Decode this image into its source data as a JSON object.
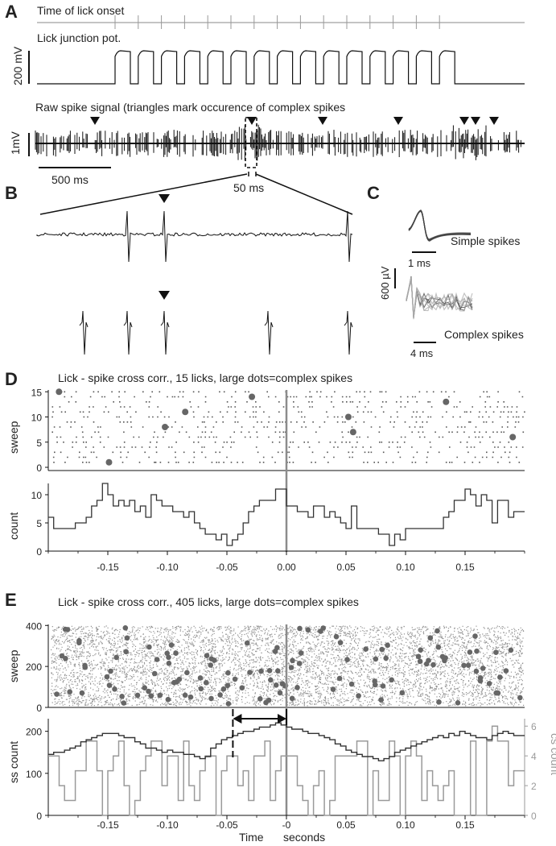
{
  "colors": {
    "ink": "#111111",
    "dot": "#555555",
    "big_dot": "#666666",
    "zero_line": "#8c8c8c",
    "cs_trace": "#9a9a9a",
    "cs_axis": "#9a9a9a",
    "simple_overlay": "#444444"
  },
  "panels": {
    "A": {
      "letter": "A",
      "lick_onset_label": "Time of lick onset",
      "junction_label": "Lick junction pot.",
      "scale_v_label": "200 mV",
      "raw_label": "Raw spike signal (triangles mark occurence of complex spikes",
      "raw_scale_label": "1mV",
      "time_scale_label": "500 ms",
      "zoom_scale_label": "50 ms"
    },
    "B": {
      "letter": "B"
    },
    "C": {
      "letter": "C",
      "simple_label": "Simple spikes",
      "simple_scale_label": "1 ms",
      "amp_scale_label": "600 µV",
      "complex_label": "Complex spikes",
      "complex_scale_label": "4 ms"
    },
    "D": {
      "letter": "D",
      "title": "Lick - spike cross corr., 15 licks, large dots=complex spikes",
      "raster_ylabel": "sweep",
      "hist_ylabel": "count"
    },
    "E": {
      "letter": "E",
      "title": "Lick - spike cross corr., 405 licks, large dots=complex spikes",
      "raster_ylabel": "sweep",
      "hist_ylabel": "ss count",
      "cs_ylabel": "cs count",
      "xlabel": "Time",
      "xunit": "seconds"
    }
  },
  "chart_data": [
    {
      "type": "scatter",
      "panel": "D-raster",
      "title": "Lick - spike cross corr., 15 licks, large dots=complex spikes",
      "ylabel": "sweep",
      "xlim": [
        -0.2,
        0.2
      ],
      "ylim": [
        0,
        16
      ],
      "y_ticks": [
        "15",
        "10",
        "5",
        "0"
      ],
      "complex_spikes": [
        {
          "x": -0.191,
          "y": 15
        },
        {
          "x": -0.029,
          "y": 14
        },
        {
          "x": 0.134,
          "y": 13
        },
        {
          "x": -0.085,
          "y": 11
        },
        {
          "x": 0.052,
          "y": 10
        },
        {
          "x": -0.102,
          "y": 8
        },
        {
          "x": 0.056,
          "y": 7
        },
        {
          "x": 0.19,
          "y": 6
        },
        {
          "x": -0.149,
          "y": 1
        }
      ],
      "zero_line_x": 0
    },
    {
      "type": "bar",
      "panel": "D-histogram",
      "ylabel": "count",
      "xlim": [
        -0.2,
        0.2
      ],
      "ylim": [
        0,
        12
      ],
      "y_ticks": [
        "10",
        "5",
        "0"
      ],
      "x_ticks": [
        "-0.15",
        "-0.10",
        "-0.05",
        "0.00",
        "0.05",
        "0.10",
        "0.15"
      ],
      "bin_width": 0.005,
      "values": [
        6,
        4,
        4,
        4,
        4,
        5,
        5,
        6,
        8,
        9,
        12,
        10,
        8,
        9,
        8,
        9,
        7,
        8,
        6,
        10,
        9,
        8,
        8,
        7,
        7,
        6,
        7,
        5,
        4,
        3,
        3,
        2,
        3,
        1,
        2,
        3,
        5,
        7,
        8,
        9,
        9,
        9,
        11,
        11,
        8,
        8,
        7,
        7,
        6,
        8,
        8,
        6,
        7,
        6,
        5,
        4,
        8,
        4,
        4,
        4,
        4,
        3,
        3,
        1,
        3,
        2,
        4,
        4,
        4,
        4,
        4,
        4,
        4,
        6,
        7,
        9,
        9,
        11,
        10,
        8,
        10,
        9,
        5,
        9,
        9,
        6,
        7,
        7
      ]
    },
    {
      "type": "scatter",
      "panel": "E-raster",
      "title": "Lick - spike cross corr., 405 licks, large dots=complex spikes",
      "ylabel": "sweep",
      "xlim": [
        -0.2,
        0.2
      ],
      "ylim": [
        0,
        405
      ],
      "y_ticks": [
        "400",
        "200",
        "0"
      ],
      "zero_line_x": 0
    },
    {
      "type": "line",
      "panel": "E-histogram",
      "xlabel": "Time",
      "xunit": "seconds",
      "xlim": [
        -0.2,
        0.2
      ],
      "x_ticks": [
        "-0.15",
        "-0.10",
        "-0.05",
        "-0",
        "0.05",
        "0.10",
        "0.15"
      ],
      "series": [
        {
          "name": "ss count",
          "axis": "left",
          "ylim": [
            0,
            230
          ],
          "y_ticks": [
            "200",
            "100",
            "0"
          ],
          "values": [
            145,
            150,
            150,
            155,
            160,
            165,
            175,
            180,
            185,
            190,
            195,
            195,
            195,
            190,
            185,
            185,
            175,
            170,
            160,
            160,
            155,
            150,
            155,
            150,
            150,
            145,
            145,
            140,
            135,
            140,
            160,
            170,
            180,
            185,
            190,
            195,
            200,
            200,
            205,
            210,
            210,
            215,
            220,
            215,
            210,
            205,
            205,
            200,
            195,
            195,
            190,
            185,
            180,
            170,
            165,
            155,
            150,
            145,
            140,
            140,
            135,
            130,
            135,
            140,
            150,
            155,
            160,
            165,
            170,
            175,
            180,
            185,
            190,
            185,
            195,
            190,
            200,
            195,
            190,
            185,
            185,
            180,
            190,
            195,
            200,
            195,
            190,
            190
          ]
        },
        {
          "name": "cs count",
          "axis": "right",
          "ylim": [
            0,
            6.5
          ],
          "y_ticks": [
            "6",
            "4",
            "2",
            "0"
          ],
          "values": [
            4,
            4,
            2,
            1,
            1,
            3,
            3,
            5,
            5,
            3,
            0,
            3,
            4,
            5,
            2,
            0,
            1,
            3,
            4,
            5,
            5,
            2,
            4,
            4,
            1,
            5,
            2,
            1,
            3,
            4,
            4,
            0,
            3,
            4,
            4,
            2,
            3,
            1,
            4,
            4,
            5,
            1,
            3,
            4,
            4,
            4,
            2,
            1,
            0,
            2,
            3,
            0,
            1,
            4,
            4,
            4,
            4,
            5,
            5,
            0,
            3,
            1,
            1,
            5,
            4,
            0,
            4,
            5,
            4,
            1,
            3,
            2,
            1,
            2,
            3,
            0,
            0,
            0,
            5,
            0,
            0,
            5,
            6,
            5,
            5,
            2,
            3,
            3
          ]
        }
      ],
      "annotation": {
        "type": "arrow",
        "x0": -0.045,
        "x1": 0.0,
        "note": "double-headed arrow"
      }
    }
  ]
}
